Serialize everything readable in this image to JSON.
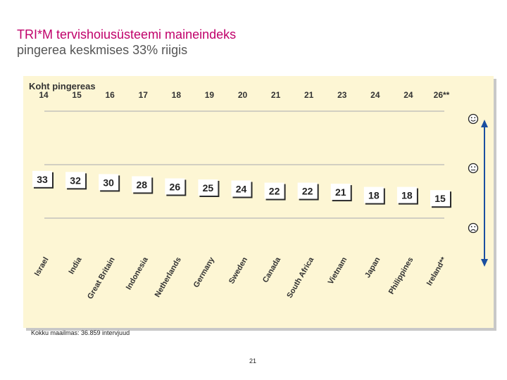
{
  "title": {
    "line1": "TRI*M  tervishoiusüsteemi maineindeks",
    "line2": "pingerea keskmises 33% riigis"
  },
  "rank_heading": "Koht pingereas",
  "footnote": "Kokku maailmas: 36.859 intervjuud",
  "page_number": "21",
  "scale_icons": [
    "smile-icon",
    "neutral-face-icon",
    "sad-face-icon"
  ],
  "colors": {
    "title": "#c0006a",
    "panel": "#fdf6d4",
    "box": "#ffffff",
    "rule": "#aaaaaa",
    "arrow": "#1a4fa0"
  },
  "chart_data": {
    "type": "scatter",
    "title": "TRI*M  tervishoiusüsteemi maineindeks",
    "subtitle": "pingerea keskmises 33% riigis",
    "categories": [
      "Israel",
      "India",
      "Great Britain",
      "Indonesia",
      "Netherlands",
      "Germany",
      "Sweden",
      "Canada",
      "South Africa",
      "Vietnam",
      "Japan",
      "Philippines",
      "Ireland**"
    ],
    "ranks": [
      "14",
      "15",
      "16",
      "17",
      "18",
      "19",
      "20",
      "21",
      "21",
      "23",
      "24",
      "24",
      "26**"
    ],
    "values": [
      33,
      32,
      30,
      28,
      26,
      25,
      24,
      22,
      22,
      21,
      18,
      18,
      15
    ],
    "ylim": [
      -50,
      100
    ],
    "grid": true,
    "legend": "none"
  }
}
